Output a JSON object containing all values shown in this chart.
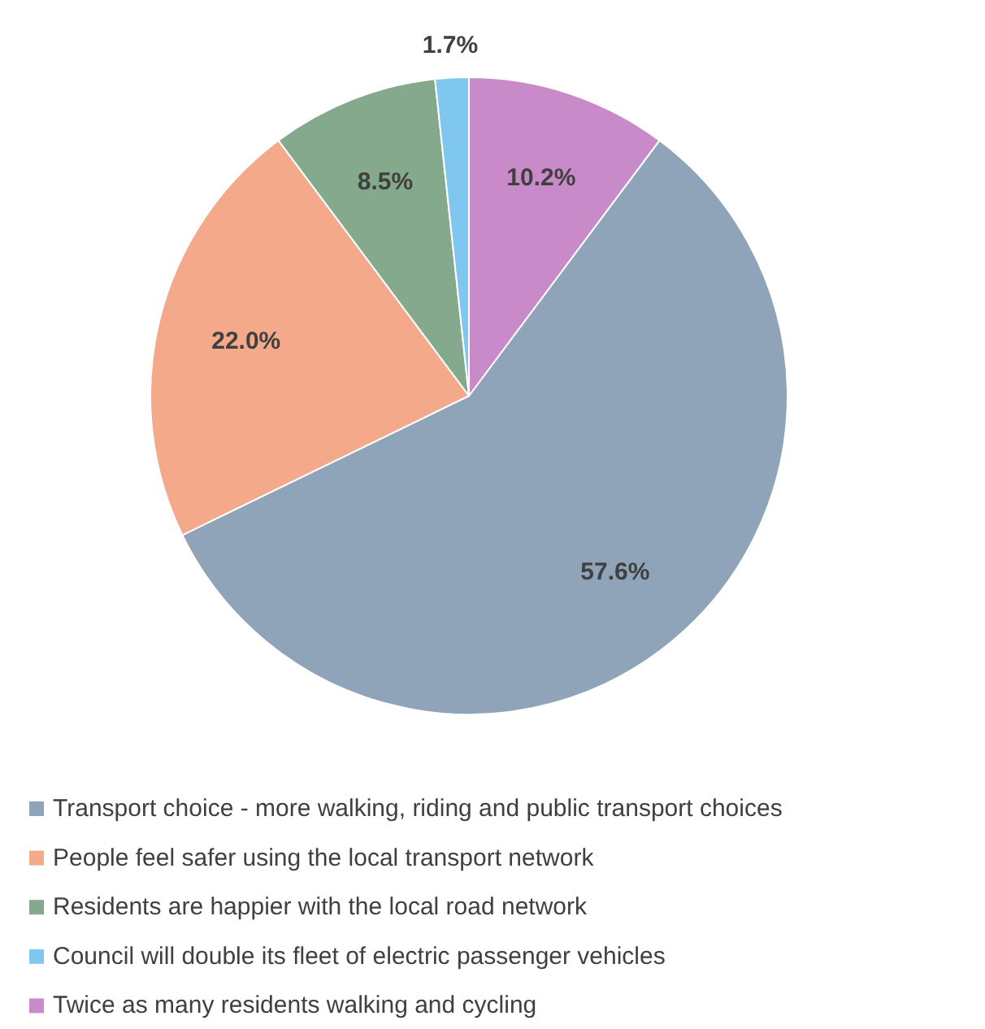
{
  "chart_data": {
    "type": "pie",
    "categories": [
      "Transport choice - more walking, riding and public transport choices",
      "People feel safer using the local transport network",
      "Residents are happier with the local road network",
      "Council will double its fleet of electric passenger vehicles",
      "Twice as many residents walking and cycling"
    ],
    "values": [
      57.6,
      22.0,
      8.5,
      1.7,
      10.2
    ],
    "colors": [
      "#8fa3b9",
      "#f4a98b",
      "#84a98c",
      "#7fc7ee",
      "#c98ac9"
    ],
    "value_labels": [
      "57.6%",
      "22.0%",
      "8.5%",
      "1.7%",
      "10.2%"
    ],
    "legend": "bottom"
  }
}
